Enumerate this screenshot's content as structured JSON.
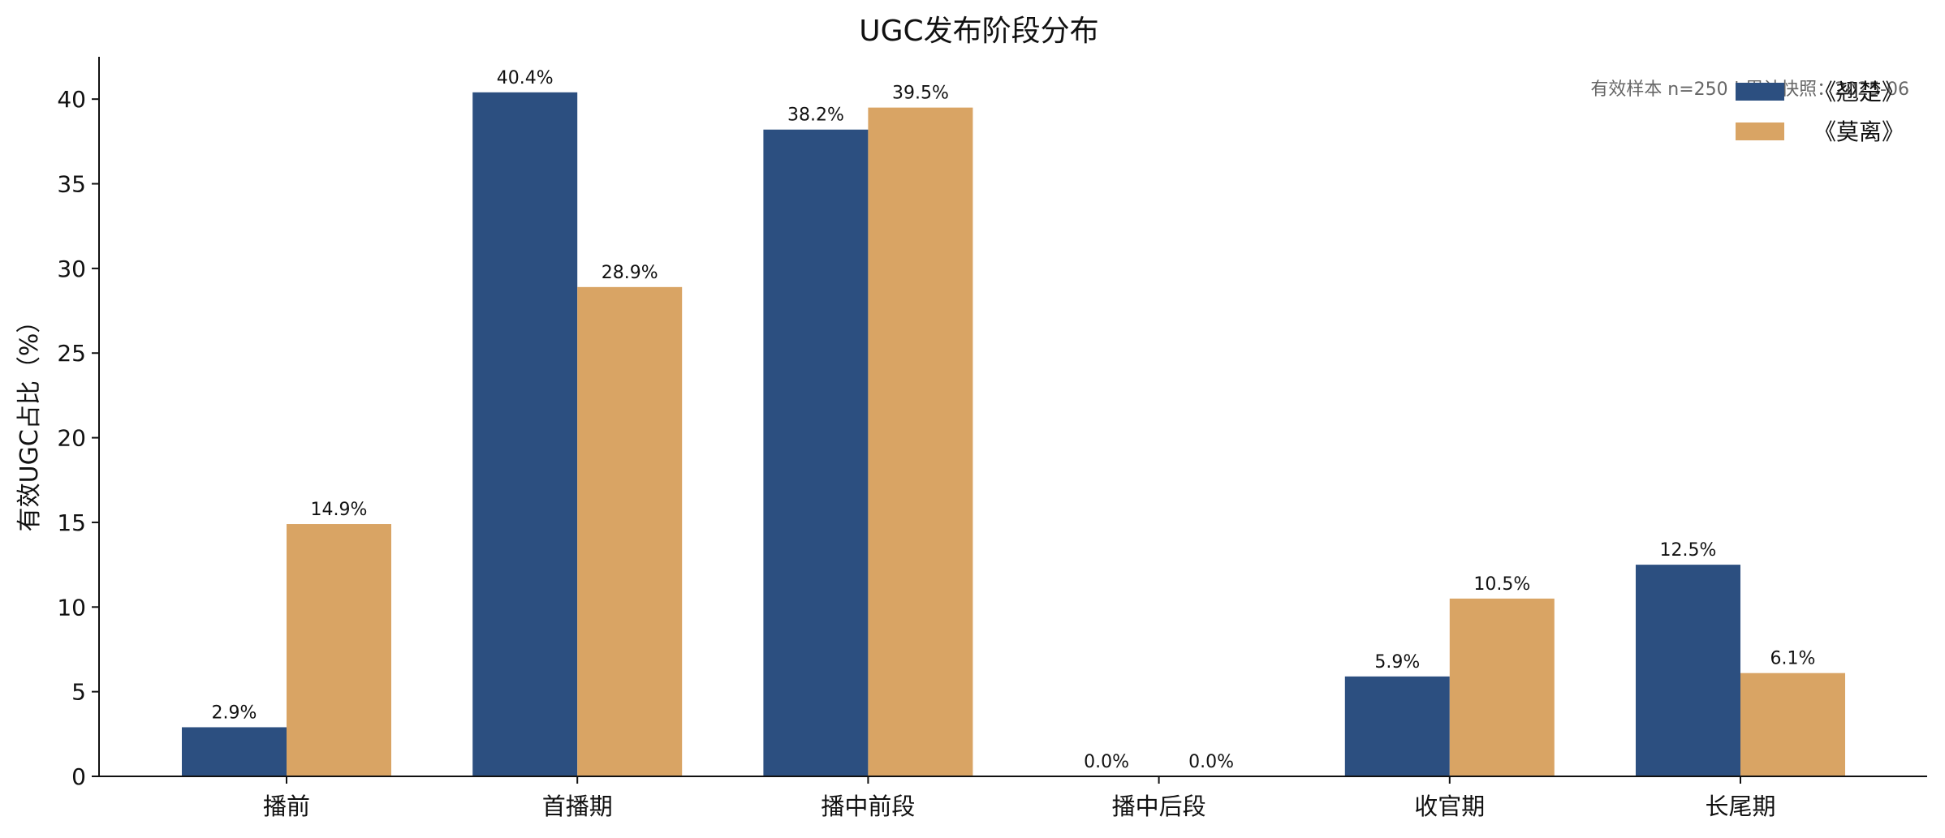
{
  "chart_data": {
    "type": "bar",
    "title": "UGC发布阶段分布",
    "xlabel": "",
    "ylabel": "有效UGC占比（%）",
    "categories": [
      "播前",
      "首播期",
      "播中前段",
      "播中后段",
      "收官期",
      "长尾期"
    ],
    "series": [
      {
        "name": "《翘楚》",
        "color": "#2c4f80",
        "values": [
          2.9,
          40.4,
          38.2,
          0.0,
          5.9,
          12.5
        ],
        "labels": [
          "2.9%",
          "40.4%",
          "38.2%",
          "0.0%",
          "5.9%",
          "12.5%"
        ]
      },
      {
        "name": "《莫离》",
        "color": "#d9a464",
        "values": [
          14.9,
          28.9,
          39.5,
          0.0,
          10.5,
          6.1
        ],
        "labels": [
          "14.9%",
          "28.9%",
          "39.5%",
          "0.0%",
          "10.5%",
          "6.1%"
        ]
      }
    ],
    "ylim": [
      0,
      42.5
    ],
    "yticks": [
      0,
      5,
      10,
      15,
      20,
      25,
      30,
      35,
      40
    ],
    "grid": false,
    "legend_position": "top-right",
    "annotation": "有效样本 n=250 | 累计快照：2025-06"
  }
}
